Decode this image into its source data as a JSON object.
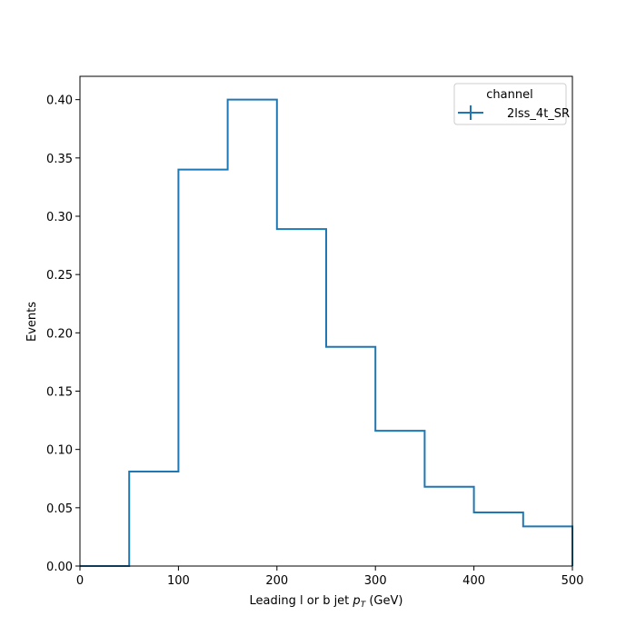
{
  "chart_data": {
    "type": "histogram-step",
    "title": "",
    "xlabel_main": "Leading l or b jet ",
    "xlabel_math": "p",
    "xlabel_sub": "T",
    "xlabel_unit": " (GeV)",
    "ylabel": "Events",
    "xlim": [
      0,
      500
    ],
    "ylim": [
      0,
      0.42
    ],
    "xticks": [
      0,
      100,
      200,
      300,
      400,
      500
    ],
    "xtick_labels": [
      "0",
      "100",
      "200",
      "300",
      "400",
      "500"
    ],
    "yticks": [
      0,
      0.05,
      0.1,
      0.15,
      0.2,
      0.25,
      0.3,
      0.35,
      0.4
    ],
    "ytick_labels": [
      "0.00",
      "0.05",
      "0.10",
      "0.15",
      "0.20",
      "0.25",
      "0.30",
      "0.35",
      "0.40"
    ],
    "bin_edges": [
      0,
      50,
      100,
      150,
      200,
      250,
      300,
      350,
      400,
      450,
      500
    ],
    "series": [
      {
        "name": "2lss_4t_SR",
        "color": "#1f77b4",
        "values": [
          0.0,
          0.081,
          0.34,
          0.4,
          0.289,
          0.188,
          0.116,
          0.068,
          0.046,
          0.034
        ]
      }
    ],
    "legend": {
      "title": "channel",
      "position": "top-right"
    },
    "grid": false
  }
}
